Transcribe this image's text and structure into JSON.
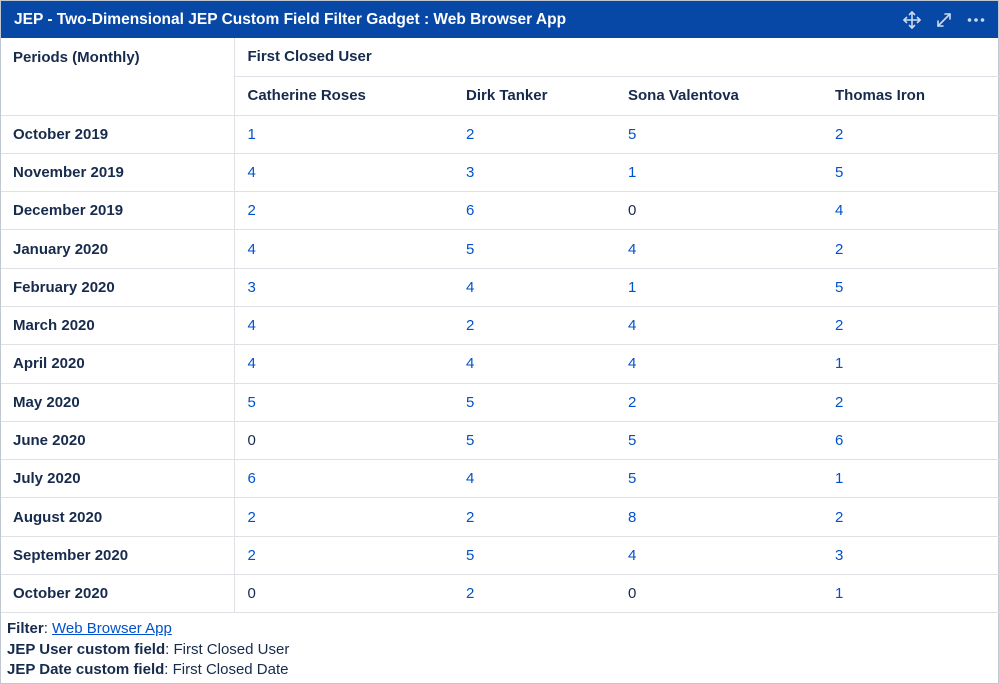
{
  "title": "JEP - Two-Dimensional JEP Custom Field Filter Gadget : Web Browser App",
  "toolbar_icons": [
    "move-icon",
    "expand-icon",
    "more-icon"
  ],
  "table": {
    "period_header": "Periods (Monthly)",
    "group_header": "First Closed User",
    "users": [
      "Catherine Roses",
      "Dirk Tanker",
      "Sona Valentova",
      "Thomas Iron"
    ],
    "rows": [
      {
        "period": "October 2019",
        "values": [
          "1",
          "2",
          "5",
          "2"
        ]
      },
      {
        "period": "November 2019",
        "values": [
          "4",
          "3",
          "1",
          "5"
        ]
      },
      {
        "period": "December 2019",
        "values": [
          "2",
          "6",
          "0",
          "4"
        ]
      },
      {
        "period": "January 2020",
        "values": [
          "4",
          "5",
          "4",
          "2"
        ]
      },
      {
        "period": "February 2020",
        "values": [
          "3",
          "4",
          "1",
          "5"
        ]
      },
      {
        "period": "March 2020",
        "values": [
          "4",
          "2",
          "4",
          "2"
        ]
      },
      {
        "period": "April 2020",
        "values": [
          "4",
          "4",
          "4",
          "1"
        ]
      },
      {
        "period": "May 2020",
        "values": [
          "5",
          "5",
          "2",
          "2"
        ]
      },
      {
        "period": "June 2020",
        "values": [
          "0",
          "5",
          "5",
          "6"
        ]
      },
      {
        "period": "July 2020",
        "values": [
          "6",
          "4",
          "5",
          "1"
        ]
      },
      {
        "period": "August 2020",
        "values": [
          "2",
          "2",
          "8",
          "2"
        ]
      },
      {
        "period": "September 2020",
        "values": [
          "2",
          "5",
          "4",
          "3"
        ]
      },
      {
        "period": "October 2020",
        "values": [
          "0",
          "2",
          "0",
          "1"
        ]
      }
    ]
  },
  "footer": {
    "filter_label": "Filter",
    "filter_value": "Web Browser App",
    "user_field_label": "JEP User custom field",
    "user_field_value": "First Closed User",
    "date_field_label": "JEP Date custom field",
    "date_field_value": "First Closed Date"
  },
  "colors": {
    "titlebar": "#0747a6",
    "link": "#0052cc",
    "text": "#172b4d",
    "border": "#dfe1e6"
  }
}
